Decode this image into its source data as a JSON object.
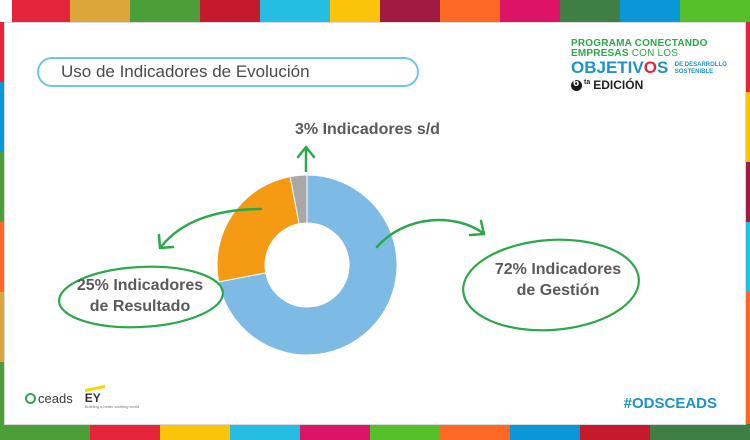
{
  "title": "Uso de Indicadores de Evolución",
  "program": {
    "line1": "PROGRAMA CONECTANDO",
    "line2_bold": "EMPRESAS",
    "line2_thin": " CON LOS",
    "objetivos_pre": "OBJETIV",
    "objetivos_o": "O",
    "objetivos_post": "S",
    "small1": "DE DESARROLLO",
    "small2": "SOSTENIBLE",
    "edition_num": "6",
    "edition_sup": "ta",
    "edition_text": "EDICIÓN"
  },
  "footer": {
    "ceads": "ceads",
    "ey": "EY",
    "ey_tagline": "Building a better working world",
    "hashtag": "#ODSCEADS"
  },
  "colors": {
    "gestion": "#7dbbe5",
    "resultado": "#f49b13",
    "sin_datos": "#a8a8a8",
    "arrow": "#2aa84a",
    "title_border": "#6cc6e6",
    "hashtag": "#1d93c9"
  },
  "chart_data": {
    "type": "pie",
    "donut": true,
    "slices": [
      {
        "name": "Indicadores de Gestión",
        "value": 72,
        "label_line1": "72% Indicadores",
        "label_line2": "de Gestión",
        "color": "#7dbbe5"
      },
      {
        "name": "Indicadores de Resultado",
        "value": 25,
        "label_line1": "25% Indicadores",
        "label_line2": "de Resultado",
        "color": "#f49b13"
      },
      {
        "name": "Indicadores s/d",
        "value": 3,
        "label_line1": "3% Indicadores s/d",
        "label_line2": "",
        "color": "#a8a8a8"
      }
    ]
  }
}
